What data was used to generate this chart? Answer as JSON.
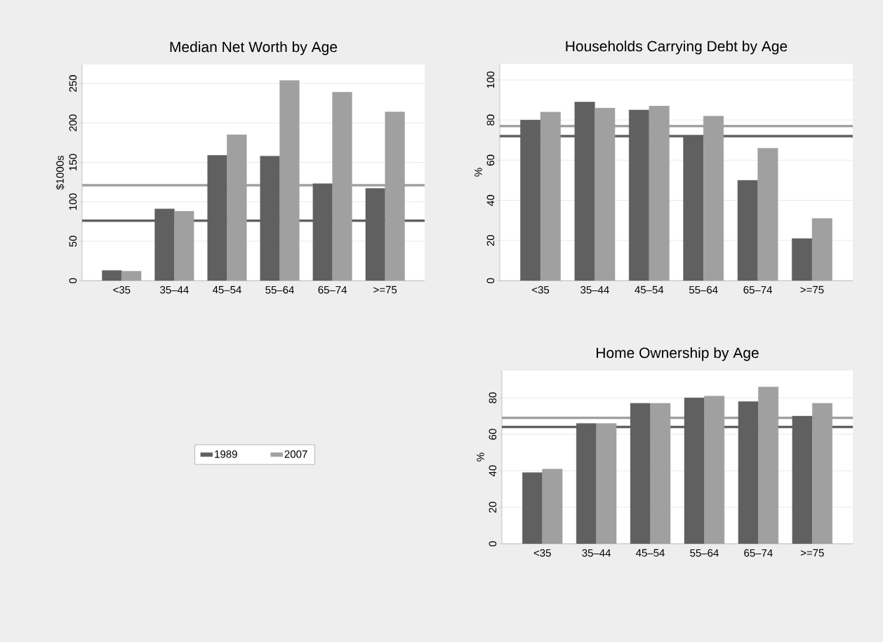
{
  "chart_data": [
    {
      "type": "bar",
      "title": "Median Net Worth by Age",
      "ylabel": "$1000s",
      "categories": [
        "<35",
        "35–44",
        "45–54",
        "55–64",
        "65–74",
        ">=75"
      ],
      "series": [
        {
          "name": "1989",
          "color": "#606060",
          "values": [
            13,
            91,
            159,
            158,
            123,
            117
          ]
        },
        {
          "name": "2007",
          "color": "#a0a0a0",
          "values": [
            12,
            88,
            185,
            254,
            239,
            214
          ]
        }
      ],
      "ylim": [
        0,
        274
      ],
      "yticks": [
        0,
        50,
        100,
        150,
        200,
        250
      ],
      "grid": "y",
      "legend": "bottom",
      "ref_lines": [
        {
          "axis": "y",
          "value": 76,
          "color": "#606060"
        },
        {
          "axis": "y",
          "value": 121,
          "color": "#a0a0a0"
        }
      ]
    },
    {
      "type": "bar",
      "title": "Households Carrying Debt by Age",
      "ylabel": "%",
      "categories": [
        "<35",
        "35–44",
        "45–54",
        "55–64",
        "65–74",
        ">=75"
      ],
      "series": [
        {
          "color": "#606060",
          "values": [
            80,
            89,
            85,
            72,
            50,
            21
          ]
        },
        {
          "color": "#a0a0a0",
          "values": [
            84,
            86,
            87,
            82,
            66,
            31
          ]
        }
      ],
      "ylim": [
        0,
        108
      ],
      "yticks": [
        0,
        20,
        40,
        60,
        80,
        100
      ],
      "grid": "y",
      "ref_lines": [
        {
          "axis": "y",
          "value": 72,
          "color": "#606060"
        },
        {
          "axis": "y",
          "value": 77,
          "color": "#a0a0a0"
        }
      ]
    },
    {
      "type": "bar",
      "title": "Home Ownership by Age",
      "ylabel": "%",
      "categories": [
        "<35",
        "35–44",
        "45–54",
        "55–64",
        "65–74",
        ">=75"
      ],
      "series": [
        {
          "color": "#606060",
          "values": [
            39,
            66,
            77,
            80,
            78,
            70
          ]
        },
        {
          "color": "#a0a0a0",
          "values": [
            41,
            66,
            77,
            81,
            86,
            77
          ]
        }
      ],
      "ylim": [
        0,
        95
      ],
      "yticks": [
        0,
        20,
        40,
        60,
        80
      ],
      "grid": "y",
      "ref_lines": [
        {
          "axis": "y",
          "value": 64,
          "color": "#606060"
        },
        {
          "axis": "y",
          "value": 69,
          "color": "#a0a0a0"
        }
      ]
    }
  ]
}
